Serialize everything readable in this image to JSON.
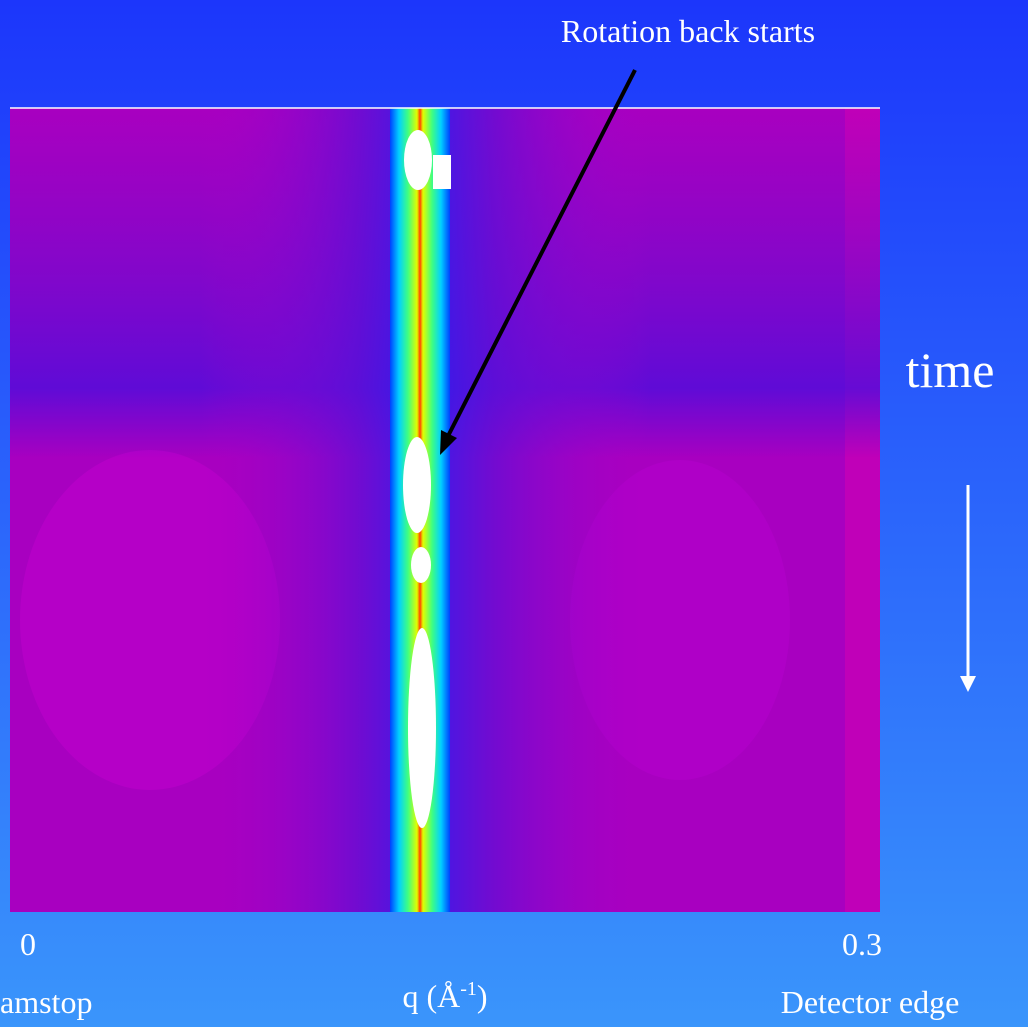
{
  "annotation": "Rotation back starts",
  "time_label": "time",
  "x_axis": {
    "left_value": "0",
    "right_value": "0.3",
    "label_main": "q (Å",
    "label_sup": "-1",
    "label_end": ")",
    "left_caption": "amstop",
    "right_caption": "Detector edge"
  }
}
